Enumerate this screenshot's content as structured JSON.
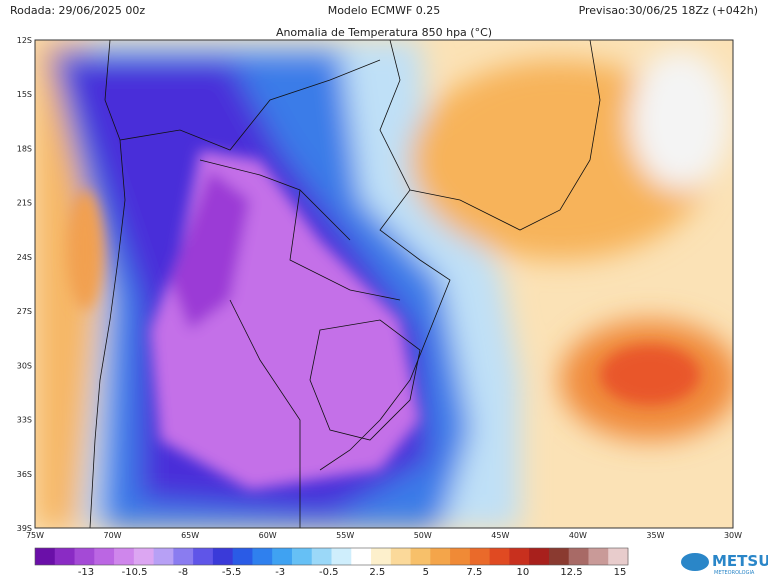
{
  "header": {
    "run": "Rodada: 29/06/2025 00z",
    "model": "Modelo ECMWF 0.25",
    "forecast": "Previsao:30/06/25 18Zz (+042h)",
    "title": "Anomalia de Temperatura 850 hpa (°C)"
  },
  "map": {
    "lat_labels": [
      "12S",
      "15S",
      "18S",
      "21S",
      "24S",
      "27S",
      "30S",
      "33S",
      "36S",
      "39S"
    ],
    "lon_labels": [
      "75W",
      "70W",
      "65W",
      "60W",
      "55W",
      "50W",
      "45W",
      "40W",
      "35W",
      "30W"
    ]
  },
  "colorbar": {
    "labels": [
      "-13",
      "-10.5",
      "-8",
      "-5.5",
      "-3",
      "-0.5",
      "2.5",
      "5",
      "7.5",
      "10",
      "12.5",
      "15"
    ]
  },
  "logo": {
    "name": "METSUL",
    "tagline": "METEOROLOGIA"
  }
}
